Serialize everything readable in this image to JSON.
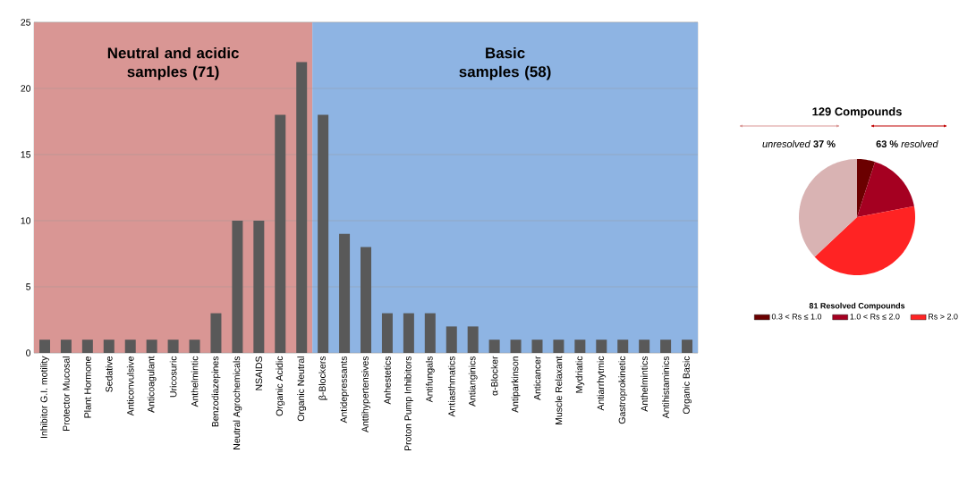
{
  "chart_data": [
    {
      "type": "bar",
      "categories": [
        "Inhibitor G.I. motility",
        "Protector Mucosal",
        "Plant Hormone",
        "Sedative",
        "Anticonvulsive",
        "Anticoagulant",
        "Uricosuric",
        "Anthelmintic",
        "Benzodiazepines",
        "Neutral Agrochemicals",
        "NSAIDS",
        "Organic Acidic",
        "Organic Neutral",
        "β-Blockers",
        "Antidepressants",
        "Anttihypertensives",
        "Anhestetics",
        "Proton Pump Inhibitors",
        "Antifungals",
        "Antiasthmatics",
        "Antianginics",
        "α-Blocker",
        "Antiparkinson",
        "Anticancer",
        "Muscle Relaxant",
        "Mydriatic",
        "Antiarrhytmic",
        "Gastroprokinetic",
        "Anthelmintics",
        "Antihistaminics",
        "Organic Basic"
      ],
      "values": [
        1,
        1,
        1,
        1,
        1,
        1,
        1,
        1,
        3,
        10,
        10,
        18,
        22,
        18,
        9,
        8,
        3,
        3,
        3,
        2,
        2,
        1,
        1,
        1,
        1,
        1,
        1,
        1,
        1,
        1,
        1
      ],
      "color": "#595959",
      "ylim": [
        0,
        25
      ],
      "yticks": [
        0,
        5,
        10,
        15,
        20,
        25
      ],
      "grid": "y",
      "bands": [
        {
          "axis": "x",
          "from": "Inhibitor G.I. motility",
          "to": "Organic Neutral",
          "label": "Neutral and acidic samples (71)",
          "color": "#d99694"
        },
        {
          "axis": "x",
          "from": "β-Blockers",
          "to": "Organic Basic",
          "label": "Basic samples (58)",
          "color": "#8eb4e3"
        }
      ]
    },
    {
      "type": "pie",
      "title": "129 Compounds",
      "categories": [
        "0.3 < Rs ≤ 1.0",
        "1.0 < Rs ≤ 2.0",
        "Rs > 2.0",
        null
      ],
      "values": [
        5,
        17,
        41,
        37
      ],
      "colors": [
        "#6b0000",
        "#a50021",
        "#ff2323",
        "#d9b3b3"
      ],
      "legend": "bottom",
      "legend_title": "81 Resolved Compounds",
      "annotations": [
        "*unresolved* **37 %**",
        "**63 %** *resolved*"
      ]
    }
  ]
}
